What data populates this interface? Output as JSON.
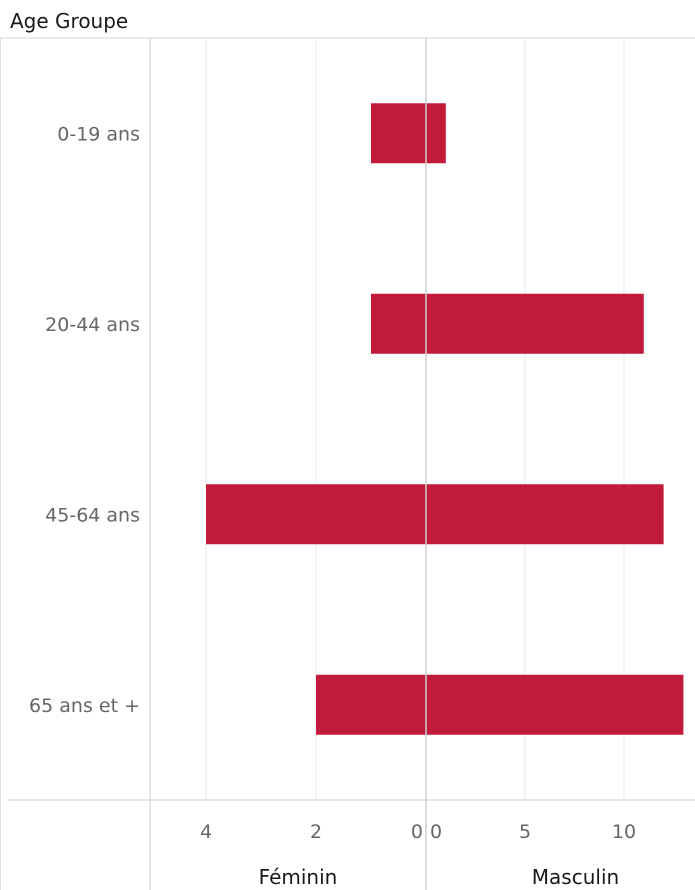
{
  "chart_data": {
    "type": "bar",
    "orientation": "horizontal-diverging",
    "header": "Age Groupe",
    "categories": [
      "0-19 ans",
      "20-44 ans",
      "45-64 ans",
      "65 ans et +"
    ],
    "series": [
      {
        "name": "Féminin",
        "values": [
          1,
          1,
          4,
          2
        ]
      },
      {
        "name": "Masculin",
        "values": [
          1,
          11,
          12,
          13
        ]
      }
    ],
    "panels": [
      {
        "label": "Féminin",
        "ticks": [
          4,
          2,
          0
        ],
        "range": [
          0,
          5
        ]
      },
      {
        "label": "Masculin",
        "ticks": [
          0,
          5,
          10
        ],
        "range": [
          0,
          13.5
        ]
      }
    ],
    "bar_color": "#C21A3A",
    "grid": true
  }
}
